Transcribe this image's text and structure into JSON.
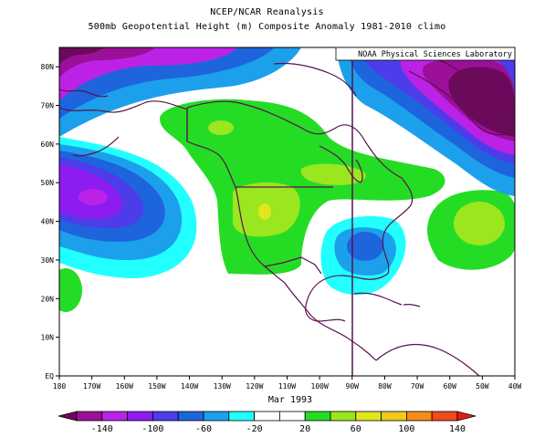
{
  "title": "NCEP/NCAR Reanalysis",
  "subtitle": "500mb Geopotential Height (m) Composite Anomaly 1981-2010 climo",
  "credit": "NOAA Physical Sciences Laboratory",
  "date_label": "Mar 1993",
  "map": {
    "lon_range": [
      -180,
      -40
    ],
    "lat_range": [
      0,
      85
    ],
    "lon_ticks": [
      "180",
      "170W",
      "160W",
      "150W",
      "140W",
      "130W",
      "120W",
      "110W",
      "100W",
      "90W",
      "80W",
      "70W",
      "60W",
      "50W",
      "40W"
    ],
    "lat_ticks": [
      "EQ",
      "10N",
      "20N",
      "30N",
      "40N",
      "50N",
      "60N",
      "70N",
      "80N"
    ],
    "variable": "500mb geopotential height anomaly",
    "units": "m"
  },
  "colorbar": {
    "labels": [
      "-140",
      "-100",
      "-60",
      "-20",
      "20",
      "60",
      "100",
      "140"
    ],
    "colors": [
      "#6b0a5a",
      "#9c0f98",
      "#bb22e6",
      "#8c1cf0",
      "#4c3ce9",
      "#1e64dc",
      "#1ca0eb",
      "#22ffff",
      "#ffffff",
      "#ffffff",
      "#25dc25",
      "#9ae61f",
      "#e1e61f",
      "#f0c81e",
      "#f58c19",
      "#f04b19",
      "#e81919"
    ]
  }
}
